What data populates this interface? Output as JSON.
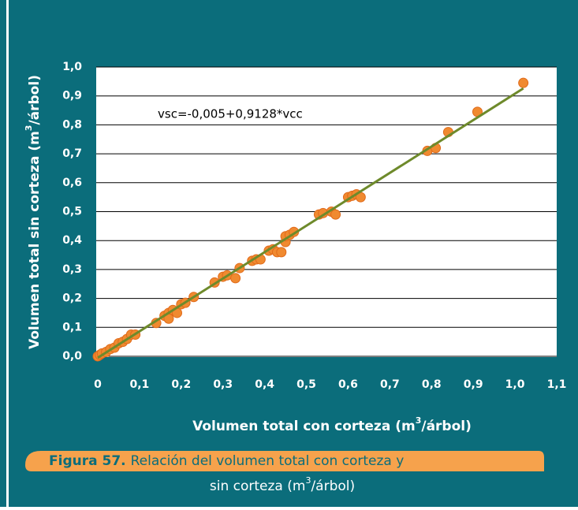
{
  "chart_data": {
    "type": "scatter",
    "xlabel": [
      "Volumen total con corteza (m",
      "3",
      "/árbol)"
    ],
    "ylabel": [
      "Volumen total sin corteza (m",
      "3",
      "/árbol)"
    ],
    "annotation": "vsc=-0,005+0,9128*vcc",
    "xlim": [
      0,
      1.1
    ],
    "xticks": [
      {
        "value": 0,
        "label": "0"
      },
      {
        "value": 0.1,
        "label": "0,1"
      },
      {
        "value": 0.2,
        "label": "0,2"
      },
      {
        "value": 0.3,
        "label": "0,3"
      },
      {
        "value": 0.4,
        "label": "0,4"
      },
      {
        "value": 0.5,
        "label": "0,5"
      },
      {
        "value": 0.6,
        "label": "0,6"
      },
      {
        "value": 0.7,
        "label": "0,7"
      },
      {
        "value": 0.8,
        "label": "0,8"
      },
      {
        "value": 0.9,
        "label": "0,9"
      },
      {
        "value": 1.0,
        "label": "1,0"
      },
      {
        "value": 1.1,
        "label": "1,1"
      }
    ],
    "ylim": [
      0,
      1.0
    ],
    "yticks": [
      {
        "value": 0,
        "label": "0,0"
      },
      {
        "value": 0.1,
        "label": "0,1"
      },
      {
        "value": 0.2,
        "label": "0,2"
      },
      {
        "value": 0.3,
        "label": "0,3"
      },
      {
        "value": 0.4,
        "label": "0,4"
      },
      {
        "value": 0.5,
        "label": "0,5"
      },
      {
        "value": 0.6,
        "label": "0,6"
      },
      {
        "value": 0.7,
        "label": "0,7"
      },
      {
        "value": 0.8,
        "label": "0,8"
      },
      {
        "value": 0.9,
        "label": "0,9"
      },
      {
        "value": 1.0,
        "label": "1,0"
      }
    ],
    "grid": true,
    "x": [
      0,
      0.005,
      0.01,
      0.02,
      0.03,
      0.04,
      0.05,
      0.06,
      0.07,
      0.08,
      0.09,
      0.14,
      0.16,
      0.17,
      0.17,
      0.18,
      0.19,
      0.2,
      0.21,
      0.23,
      0.28,
      0.3,
      0.31,
      0.33,
      0.34,
      0.37,
      0.38,
      0.39,
      0.41,
      0.42,
      0.43,
      0.44,
      0.45,
      0.45,
      0.46,
      0.47,
      0.53,
      0.54,
      0.56,
      0.57,
      0.6,
      0.61,
      0.62,
      0.63,
      0.79,
      0.81,
      0.84,
      0.91,
      1.02
    ],
    "series": [
      {
        "color": "#f08a30",
        "values": [
          0,
          0.005,
          0.01,
          0.015,
          0.025,
          0.03,
          0.045,
          0.05,
          0.06,
          0.075,
          0.075,
          0.115,
          0.14,
          0.15,
          0.13,
          0.16,
          0.15,
          0.18,
          0.185,
          0.205,
          0.255,
          0.275,
          0.28,
          0.27,
          0.305,
          0.33,
          0.335,
          0.335,
          0.365,
          0.37,
          0.36,
          0.36,
          0.395,
          0.415,
          0.42,
          0.43,
          0.49,
          0.495,
          0.5,
          0.49,
          0.55,
          0.555,
          0.56,
          0.55,
          0.71,
          0.72,
          0.775,
          0.845,
          0.945
        ]
      }
    ],
    "trendline": {
      "color": "#6e8a2b",
      "x": [
        0,
        1.02
      ],
      "values": [
        -0.005,
        0.926
      ]
    }
  },
  "caption": {
    "label": "Figura 57.",
    "line1": "Relación del volumen total con corteza y",
    "line2": [
      "sin corteza (m",
      "3",
      "/árbol)"
    ]
  }
}
